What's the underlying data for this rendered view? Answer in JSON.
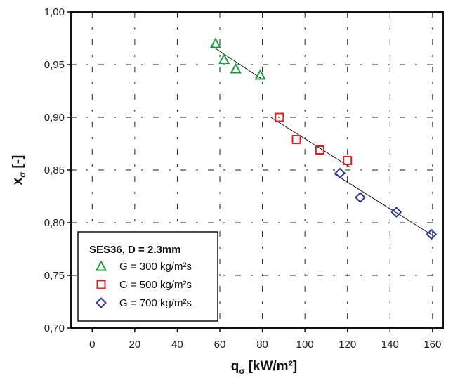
{
  "chart_data": {
    "type": "scatter",
    "xlabel": "q",
    "xlabel_sub": "σ",
    "xlabel_unit": "[kW/m²]",
    "ylabel": "x",
    "ylabel_sub": "σ",
    "ylabel_unit": "[-]",
    "xlim": [
      -10,
      165
    ],
    "ylim": [
      0.7,
      1.0
    ],
    "x_ticks": [
      0,
      20,
      40,
      60,
      80,
      100,
      120,
      140,
      160
    ],
    "x_tick_labels": [
      "0",
      "20",
      "40",
      "60",
      "80",
      "100",
      "120",
      "140",
      "160"
    ],
    "y_ticks": [
      0.7,
      0.75,
      0.8,
      0.85,
      0.9,
      0.95,
      1.0
    ],
    "y_tick_labels": [
      "0,70",
      "0,75",
      "0,80",
      "0,85",
      "0,90",
      "0,95",
      "1,00"
    ],
    "grid": true,
    "legend": {
      "placement": "bottom-left",
      "title": "SES36, D = 2.3mm"
    },
    "series": [
      {
        "name": "G = 300 kg/m²s",
        "marker": "triangle",
        "color": "#1a9e3a",
        "points": [
          [
            58,
            0.97
          ],
          [
            62,
            0.955
          ],
          [
            67.5,
            0.946
          ],
          [
            79,
            0.94
          ]
        ],
        "fit": [
          [
            56,
            0.968
          ],
          [
            80,
            0.936
          ]
        ]
      },
      {
        "name": "G = 500 kg/m²s",
        "marker": "square",
        "color": "#e02020",
        "points": [
          [
            88,
            0.9
          ],
          [
            96,
            0.879
          ],
          [
            107,
            0.869
          ],
          [
            120,
            0.859
          ]
        ],
        "fit": [
          [
            84,
            0.9
          ],
          [
            121,
            0.853
          ]
        ]
      },
      {
        "name": "G = 700 kg/m²s",
        "marker": "diamond",
        "color": "#2a3a9a",
        "points": [
          [
            116.5,
            0.847
          ],
          [
            126,
            0.824
          ],
          [
            143,
            0.81
          ],
          [
            159.5,
            0.789
          ]
        ],
        "fit": [
          [
            114,
            0.846
          ],
          [
            160,
            0.788
          ]
        ]
      }
    ]
  }
}
